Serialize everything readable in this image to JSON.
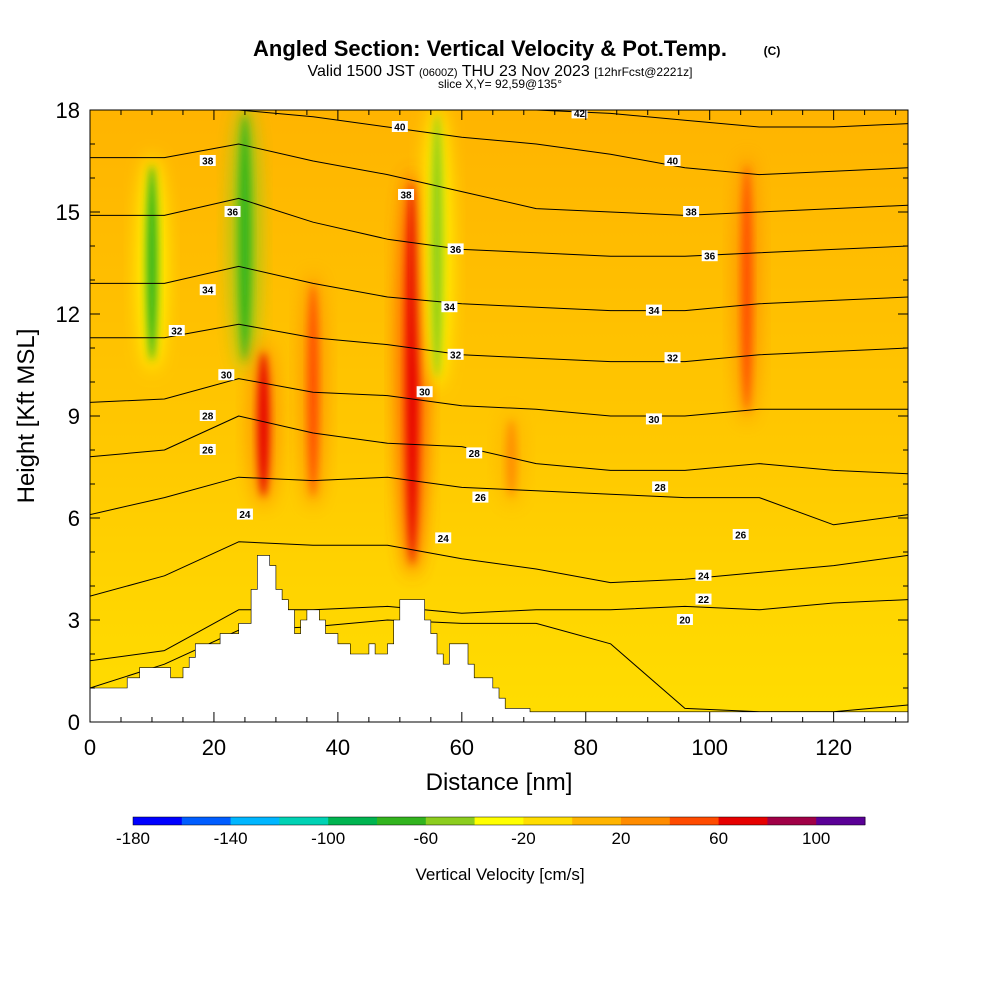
{
  "header": {
    "title": "Angled Section: Vertical Velocity & Pot.Temp.",
    "title_suffix": "(C)",
    "valid_prefix": "Valid 1500 JST",
    "valid_utc": "(0600Z)",
    "valid_date": "THU 23 Nov 2023",
    "forecast_info": "[12hrFcst@2221z]",
    "slice": "slice X,Y= 92,59@135°"
  },
  "colors": {
    "background": "#ffffff",
    "terrain": "#ffffff",
    "contour": "#000000"
  },
  "chart_data": {
    "type": "heatmap",
    "title": "Angled Section: Vertical Velocity & Pot.Temp.",
    "xlabel": "Distance [nm]",
    "ylabel": "Height [Kft MSL]",
    "xlim": [
      0,
      132
    ],
    "ylim": [
      0,
      18
    ],
    "x_ticks": [
      "0",
      "20",
      "40",
      "60",
      "80",
      "100",
      "120"
    ],
    "y_ticks": [
      "0",
      "3",
      "6",
      "9",
      "12",
      "15",
      "18"
    ],
    "colorbar": {
      "label": "Vertical Velocity [cm/s]",
      "tick_labels": [
        "-180",
        "-140",
        "-100",
        "-60",
        "-20",
        "20",
        "60",
        "100"
      ],
      "tick_values": [
        -180,
        -140,
        -100,
        -60,
        -20,
        20,
        60,
        100
      ],
      "range": [
        -180,
        120
      ],
      "colors": [
        "#0000ff",
        "#005dff",
        "#00b6ff",
        "#00d2b4",
        "#00b450",
        "#32b41e",
        "#8ccd1e",
        "#ffff00",
        "#ffdd00",
        "#ffb400",
        "#ff8c00",
        "#ff4b00",
        "#e60000",
        "#a00046",
        "#5a0096"
      ]
    },
    "velocity_features": [
      {
        "x": 10,
        "y_range": [
          10.5,
          16.5
        ],
        "w": -65
      },
      {
        "x": 25,
        "y_range": [
          10.5,
          18
        ],
        "w": -80
      },
      {
        "x": 28,
        "y_range": [
          6.5,
          11
        ],
        "w": 65
      },
      {
        "x": 36,
        "y_range": [
          6.5,
          13
        ],
        "w": 40
      },
      {
        "x": 52,
        "y_range": [
          4.5,
          16
        ],
        "w": 75
      },
      {
        "x": 56,
        "y_range": [
          10,
          18
        ],
        "w": -55
      },
      {
        "x": 68,
        "y_range": [
          6.5,
          9
        ],
        "w": 35
      },
      {
        "x": 106,
        "y_range": [
          9,
          16.5
        ],
        "w": 40
      }
    ],
    "isentropes": [
      {
        "theta": 20,
        "heights": [
          1.0,
          1.7,
          2.7,
          2.8,
          3.0,
          2.9,
          2.9,
          2.3,
          0.4,
          0.3,
          0.3,
          0.5
        ]
      },
      {
        "theta": 22,
        "heights": [
          1.8,
          2.1,
          3.3,
          3.3,
          3.4,
          3.2,
          3.3,
          3.3,
          3.4,
          3.3,
          3.5,
          3.6
        ]
      },
      {
        "theta": 24,
        "heights": [
          3.7,
          4.3,
          5.3,
          5.2,
          5.2,
          4.8,
          4.5,
          4.1,
          4.2,
          4.4,
          4.6,
          4.9
        ]
      },
      {
        "theta": 26,
        "heights": [
          6.1,
          6.6,
          7.2,
          7.1,
          7.2,
          6.9,
          6.8,
          6.7,
          6.6,
          6.6,
          5.8,
          6.1
        ]
      },
      {
        "theta": 28,
        "heights": [
          7.8,
          8.0,
          9.0,
          8.5,
          8.2,
          8.1,
          7.6,
          7.4,
          7.4,
          7.6,
          7.4,
          7.3
        ]
      },
      {
        "theta": 30,
        "heights": [
          9.4,
          9.5,
          10.1,
          9.7,
          9.6,
          9.3,
          9.2,
          9.0,
          9.0,
          9.2,
          9.2,
          9.2
        ]
      },
      {
        "theta": 32,
        "heights": [
          11.3,
          11.3,
          11.7,
          11.3,
          11.1,
          10.8,
          10.7,
          10.6,
          10.6,
          10.8,
          10.9,
          11.0
        ]
      },
      {
        "theta": 34,
        "heights": [
          12.9,
          12.9,
          13.4,
          12.9,
          12.5,
          12.3,
          12.2,
          12.1,
          12.1,
          12.3,
          12.4,
          12.5
        ]
      },
      {
        "theta": 36,
        "heights": [
          14.9,
          14.9,
          15.4,
          14.7,
          14.2,
          13.9,
          13.8,
          13.7,
          13.7,
          13.8,
          13.9,
          14.0
        ]
      },
      {
        "theta": 38,
        "heights": [
          16.6,
          16.6,
          17.0,
          16.5,
          16.1,
          15.6,
          15.1,
          15.0,
          14.9,
          15.0,
          15.1,
          15.2
        ]
      },
      {
        "theta": 40,
        "heights": [
          18.0,
          18.0,
          18.0,
          17.8,
          17.5,
          17.2,
          17.0,
          16.7,
          16.3,
          16.1,
          16.2,
          16.3
        ]
      },
      {
        "theta": 42,
        "heights": [
          null,
          null,
          null,
          null,
          null,
          18.0,
          18.0,
          17.9,
          17.7,
          17.5,
          17.5,
          17.6
        ]
      }
    ],
    "contour_labels": [
      {
        "text": "38",
        "x": 19,
        "y": 16.5
      },
      {
        "text": "36",
        "x": 23,
        "y": 15.0
      },
      {
        "text": "34",
        "x": 19,
        "y": 12.7
      },
      {
        "text": "32",
        "x": 14,
        "y": 11.5
      },
      {
        "text": "30",
        "x": 22,
        "y": 10.2
      },
      {
        "text": "28",
        "x": 19,
        "y": 9.0
      },
      {
        "text": "26",
        "x": 19,
        "y": 8.0
      },
      {
        "text": "24",
        "x": 25,
        "y": 6.1
      },
      {
        "text": "40",
        "x": 50,
        "y": 17.5
      },
      {
        "text": "38",
        "x": 51,
        "y": 15.5
      },
      {
        "text": "36",
        "x": 59,
        "y": 13.9
      },
      {
        "text": "34",
        "x": 58,
        "y": 12.2
      },
      {
        "text": "32",
        "x": 59,
        "y": 10.8
      },
      {
        "text": "30",
        "x": 54,
        "y": 9.7
      },
      {
        "text": "28",
        "x": 62,
        "y": 7.9
      },
      {
        "text": "26",
        "x": 63,
        "y": 6.6
      },
      {
        "text": "24",
        "x": 57,
        "y": 5.4
      },
      {
        "text": "42",
        "x": 79,
        "y": 17.9
      },
      {
        "text": "40",
        "x": 94,
        "y": 16.5
      },
      {
        "text": "38",
        "x": 97,
        "y": 15.0
      },
      {
        "text": "36",
        "x": 100,
        "y": 13.7
      },
      {
        "text": "34",
        "x": 91,
        "y": 12.1
      },
      {
        "text": "32",
        "x": 94,
        "y": 10.7
      },
      {
        "text": "30",
        "x": 91,
        "y": 8.9
      },
      {
        "text": "28",
        "x": 92,
        "y": 6.9
      },
      {
        "text": "26",
        "x": 105,
        "y": 5.5
      },
      {
        "text": "24",
        "x": 99,
        "y": 4.3
      },
      {
        "text": "22",
        "x": 99,
        "y": 3.6
      },
      {
        "text": "20",
        "x": 96,
        "y": 3.0
      }
    ],
    "terrain_kft": [
      [
        0,
        1.0
      ],
      [
        6,
        1.0
      ],
      [
        6,
        1.3
      ],
      [
        8,
        1.3
      ],
      [
        8,
        1.6
      ],
      [
        13,
        1.6
      ],
      [
        13,
        1.3
      ],
      [
        15,
        1.3
      ],
      [
        15,
        1.6
      ],
      [
        16,
        1.6
      ],
      [
        16,
        1.9
      ],
      [
        17,
        1.9
      ],
      [
        17,
        2.3
      ],
      [
        21,
        2.3
      ],
      [
        21,
        2.6
      ],
      [
        24,
        2.6
      ],
      [
        24,
        2.9
      ],
      [
        26,
        2.9
      ],
      [
        26,
        3.9
      ],
      [
        27,
        3.9
      ],
      [
        27,
        4.9
      ],
      [
        29,
        4.9
      ],
      [
        29,
        4.6
      ],
      [
        30,
        4.6
      ],
      [
        30,
        3.9
      ],
      [
        31,
        3.9
      ],
      [
        31,
        3.6
      ],
      [
        32,
        3.6
      ],
      [
        32,
        3.3
      ],
      [
        33,
        3.3
      ],
      [
        33,
        2.6
      ],
      [
        34,
        2.6
      ],
      [
        34,
        3.0
      ],
      [
        35,
        3.0
      ],
      [
        35,
        3.3
      ],
      [
        37,
        3.3
      ],
      [
        37,
        3.0
      ],
      [
        38,
        3.0
      ],
      [
        38,
        2.6
      ],
      [
        40,
        2.6
      ],
      [
        40,
        2.3
      ],
      [
        42,
        2.3
      ],
      [
        42,
        2.0
      ],
      [
        45,
        2.0
      ],
      [
        45,
        2.3
      ],
      [
        46,
        2.3
      ],
      [
        46,
        2.0
      ],
      [
        48,
        2.0
      ],
      [
        48,
        2.3
      ],
      [
        49,
        2.3
      ],
      [
        49,
        3.0
      ],
      [
        50,
        3.0
      ],
      [
        50,
        3.6
      ],
      [
        54,
        3.6
      ],
      [
        54,
        3.0
      ],
      [
        55,
        3.0
      ],
      [
        55,
        2.6
      ],
      [
        56,
        2.6
      ],
      [
        56,
        2.0
      ],
      [
        57,
        2.0
      ],
      [
        57,
        1.7
      ],
      [
        58,
        1.7
      ],
      [
        58,
        2.3
      ],
      [
        61,
        2.3
      ],
      [
        61,
        1.7
      ],
      [
        62,
        1.7
      ],
      [
        62,
        1.3
      ],
      [
        65,
        1.3
      ],
      [
        65,
        1.0
      ],
      [
        66,
        1.0
      ],
      [
        66,
        0.7
      ],
      [
        67,
        0.7
      ],
      [
        67,
        0.4
      ],
      [
        71,
        0.4
      ],
      [
        71,
        0.3
      ],
      [
        132,
        0.3
      ],
      [
        132,
        0
      ]
    ]
  }
}
